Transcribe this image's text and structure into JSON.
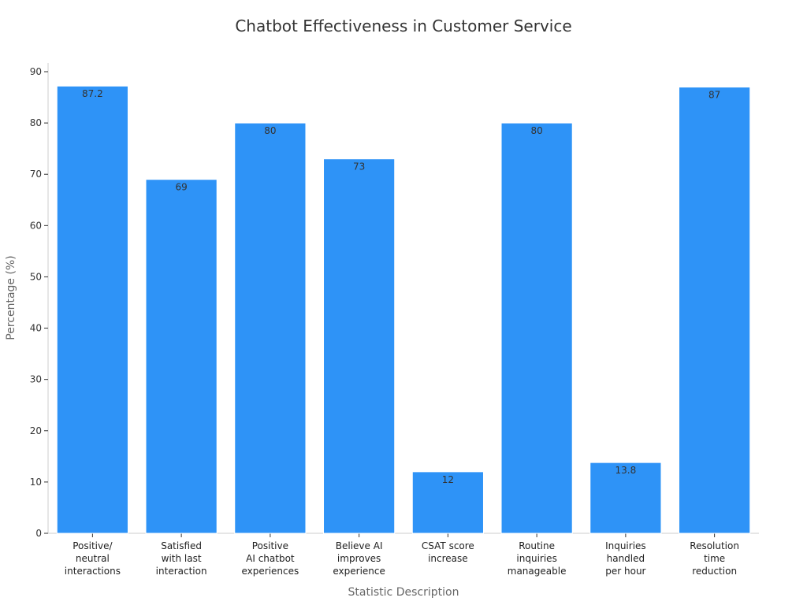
{
  "chart_data": {
    "type": "bar",
    "title": "Chatbot Effectiveness in Customer Service",
    "xlabel": "Statistic Description",
    "ylabel": "Percentage (%)",
    "ylim": [
      0,
      90
    ],
    "yticks": [
      0,
      10,
      20,
      30,
      40,
      50,
      60,
      70,
      80,
      90
    ],
    "categories": [
      [
        "Positive/",
        "neutral",
        "interactions"
      ],
      [
        "Satisfied",
        "with last",
        "interaction"
      ],
      [
        "Positive",
        "AI chatbot",
        "experiences"
      ],
      [
        "Believe AI",
        "improves",
        "experience"
      ],
      [
        "CSAT score",
        "increase"
      ],
      [
        "Routine",
        "inquiries",
        "manageable"
      ],
      [
        "Inquiries",
        "handled",
        "per hour"
      ],
      [
        "Resolution",
        "time",
        "reduction"
      ]
    ],
    "values": [
      87.2,
      69,
      80,
      73,
      12,
      80,
      13.8,
      87
    ],
    "data_labels": [
      "87.2",
      "69",
      "80",
      "73",
      "12",
      "80",
      "13.8",
      "87"
    ],
    "colors": {
      "bar": "#2e93f7"
    },
    "grid": false,
    "legend": "none"
  }
}
